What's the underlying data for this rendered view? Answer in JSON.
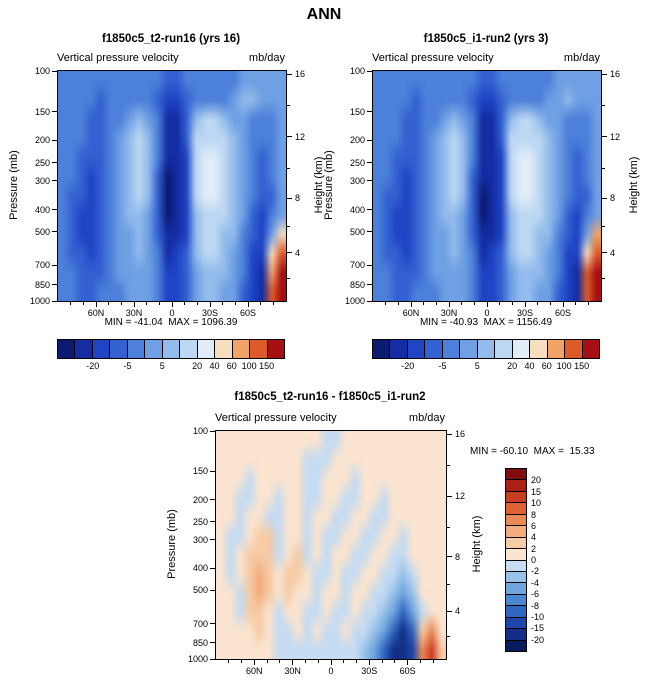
{
  "page_title": "ANN",
  "shared": {
    "subtitle_left": "Vertical pressure velocity",
    "subtitle_right": "mb/day",
    "ylabel_left": "Pressure (mb)",
    "ylabel_right": "Height (km)",
    "pressure_ticks": [
      {
        "label": "100",
        "f": 0.0
      },
      {
        "label": "150",
        "f": 0.1761
      },
      {
        "label": "200",
        "f": 0.301
      },
      {
        "label": "250",
        "f": 0.3979
      },
      {
        "label": "300",
        "f": 0.4771
      },
      {
        "label": "400",
        "f": 0.6021
      },
      {
        "label": "500",
        "f": 0.699
      },
      {
        "label": "700",
        "f": 0.8451
      },
      {
        "label": "850",
        "f": 0.9294
      },
      {
        "label": "1000",
        "f": 1.0
      }
    ],
    "height_ticks": [
      {
        "label": "16",
        "f": 0.013
      },
      {
        "label": "12",
        "f": 0.286
      },
      {
        "label": "8",
        "f": 0.552
      },
      {
        "label": "4",
        "f": 0.79
      }
    ],
    "height_minor_f": [
      0.149,
      0.423,
      0.674,
      0.9
    ],
    "lat_ticks": [
      {
        "label": "60N",
        "f": 0.1667
      },
      {
        "label": "30N",
        "f": 0.3333
      },
      {
        "label": "0",
        "f": 0.5
      },
      {
        "label": "30S",
        "f": 0.6667
      },
      {
        "label": "60S",
        "f": 0.8333
      }
    ],
    "lat_minor_f": [
      0.0556,
      0.1111,
      0.2222,
      0.2778,
      0.3889,
      0.4444,
      0.5556,
      0.6111,
      0.7222,
      0.7778,
      0.8889,
      0.9444
    ]
  },
  "chart_data": [
    {
      "id": "run16",
      "type": "heatmap",
      "title": "f1850c5_t2-run16 (yrs 16)",
      "variable": "Vertical pressure velocity",
      "units": "mb/day",
      "min": -41.04,
      "max": 1096.39,
      "minmax_text": "MIN = -41.04  MAX = 1096.39",
      "x_axis": "latitude 90N to 90S",
      "y_axis": "pressure 100 to 1000 mb (log scale)",
      "levels": [
        -50,
        -20,
        -10,
        -5,
        0,
        5,
        10,
        20,
        40,
        60,
        100,
        150
      ],
      "palette": [
        "#0c1a72",
        "#142da4",
        "#1f44c4",
        "#3361d2",
        "#4c80da",
        "#6fa0e4",
        "#93bcec",
        "#bcd8f3",
        "#e0edf9",
        "#f6debf",
        "#f2a468",
        "#dc5b28",
        "#a60f14"
      ],
      "colorbar_labels": [
        {
          "t": "-20",
          "f": 0.1538
        },
        {
          "t": "-5",
          "f": 0.3077
        },
        {
          "t": "5",
          "f": 0.4615
        },
        {
          "t": "20",
          "f": 0.6154
        },
        {
          "t": "40",
          "f": 0.6923
        },
        {
          "t": "60",
          "f": 0.7692
        },
        {
          "t": "100",
          "f": 0.8462
        },
        {
          "t": "150",
          "f": 0.9231
        }
      ],
      "grid_note": "approximate visual reconstruction; values are palette band indices; rows top(100mb) to bottom(1000mb), cols 90N to 90S",
      "grid": [
        [
          4,
          4,
          4,
          4,
          4,
          4,
          4,
          4,
          4,
          4,
          4,
          3,
          3,
          4,
          4,
          4,
          4,
          4,
          4,
          5,
          5,
          5,
          5,
          5
        ],
        [
          4,
          4,
          4,
          4,
          3,
          4,
          4,
          4,
          4,
          4,
          3,
          2,
          2,
          3,
          4,
          4,
          4,
          4,
          5,
          6,
          6,
          5,
          5,
          5
        ],
        [
          4,
          4,
          4,
          3,
          3,
          4,
          4,
          5,
          6,
          5,
          4,
          1,
          1,
          3,
          6,
          7,
          7,
          6,
          5,
          5,
          4,
          4,
          4,
          5
        ],
        [
          4,
          4,
          4,
          3,
          3,
          4,
          5,
          6,
          7,
          6,
          4,
          1,
          1,
          3,
          7,
          7,
          7,
          7,
          6,
          5,
          4,
          4,
          4,
          5
        ],
        [
          4,
          4,
          3,
          3,
          3,
          4,
          5,
          6,
          7,
          6,
          4,
          1,
          1,
          2,
          7,
          8,
          8,
          7,
          6,
          5,
          4,
          3,
          4,
          5
        ],
        [
          4,
          4,
          3,
          2,
          3,
          4,
          5,
          6,
          7,
          6,
          3,
          0,
          1,
          2,
          7,
          8,
          8,
          7,
          6,
          5,
          4,
          3,
          4,
          5
        ],
        [
          4,
          3,
          3,
          2,
          3,
          4,
          5,
          6,
          7,
          6,
          3,
          0,
          1,
          2,
          7,
          8,
          8,
          7,
          6,
          5,
          4,
          3,
          3,
          5
        ],
        [
          4,
          3,
          2,
          2,
          3,
          4,
          5,
          6,
          6,
          5,
          3,
          0,
          1,
          2,
          6,
          7,
          7,
          7,
          6,
          5,
          3,
          2,
          4,
          5
        ],
        [
          4,
          3,
          2,
          2,
          3,
          4,
          5,
          5,
          6,
          5,
          3,
          1,
          1,
          2,
          6,
          7,
          7,
          6,
          6,
          4,
          3,
          2,
          5,
          9
        ],
        [
          4,
          3,
          3,
          2,
          3,
          4,
          5,
          5,
          6,
          5,
          4,
          1,
          2,
          3,
          6,
          7,
          7,
          6,
          5,
          4,
          2,
          2,
          9,
          11
        ],
        [
          4,
          4,
          3,
          3,
          3,
          4,
          5,
          5,
          5,
          5,
          4,
          2,
          2,
          3,
          5,
          6,
          6,
          6,
          5,
          4,
          2,
          1,
          10,
          12
        ],
        [
          4,
          4,
          3,
          3,
          4,
          4,
          4,
          5,
          5,
          5,
          4,
          2,
          2,
          3,
          5,
          6,
          6,
          5,
          5,
          3,
          2,
          1,
          11,
          12
        ]
      ]
    },
    {
      "id": "run2",
      "type": "heatmap",
      "title": "f1850c5_i1-run2 (yrs 3)",
      "variable": "Vertical pressure velocity",
      "units": "mb/day",
      "min": -40.93,
      "max": 1156.49,
      "minmax_text": "MIN = -40.93  MAX = 1156.49",
      "x_axis": "latitude 90N to 90S",
      "y_axis": "pressure 100 to 1000 mb (log scale)",
      "levels": [
        -50,
        -20,
        -10,
        -5,
        0,
        5,
        10,
        20,
        40,
        60,
        100,
        150
      ],
      "palette": [
        "#0c1a72",
        "#142da4",
        "#1f44c4",
        "#3361d2",
        "#4c80da",
        "#6fa0e4",
        "#93bcec",
        "#bcd8f3",
        "#e0edf9",
        "#f6debf",
        "#f2a468",
        "#dc5b28",
        "#a60f14"
      ],
      "colorbar_labels": [
        {
          "t": "-20",
          "f": 0.1538
        },
        {
          "t": "-5",
          "f": 0.3077
        },
        {
          "t": "5",
          "f": 0.4615
        },
        {
          "t": "20",
          "f": 0.6154
        },
        {
          "t": "40",
          "f": 0.6923
        },
        {
          "t": "60",
          "f": 0.7692
        },
        {
          "t": "100",
          "f": 0.8462
        },
        {
          "t": "150",
          "f": 0.9231
        }
      ],
      "grid_note": "approximate visual reconstruction; values are palette band indices; rows top(100mb) to bottom(1000mb), cols 90N to 90S",
      "grid": [
        [
          4,
          4,
          4,
          4,
          4,
          4,
          4,
          4,
          4,
          4,
          4,
          3,
          3,
          4,
          4,
          4,
          4,
          4,
          4,
          5,
          5,
          5,
          5,
          5
        ],
        [
          4,
          4,
          4,
          4,
          3,
          4,
          4,
          4,
          4,
          4,
          3,
          2,
          2,
          3,
          4,
          4,
          4,
          4,
          5,
          5,
          6,
          5,
          5,
          5
        ],
        [
          4,
          4,
          4,
          3,
          3,
          4,
          4,
          5,
          6,
          5,
          4,
          1,
          1,
          3,
          6,
          7,
          7,
          6,
          5,
          5,
          4,
          4,
          4,
          5
        ],
        [
          4,
          4,
          4,
          3,
          3,
          4,
          5,
          6,
          7,
          6,
          4,
          1,
          1,
          3,
          7,
          7,
          7,
          7,
          6,
          5,
          4,
          4,
          4,
          5
        ],
        [
          4,
          4,
          3,
          3,
          3,
          4,
          5,
          6,
          7,
          6,
          4,
          1,
          1,
          2,
          7,
          8,
          8,
          7,
          6,
          5,
          4,
          3,
          4,
          5
        ],
        [
          4,
          4,
          3,
          2,
          3,
          4,
          5,
          6,
          7,
          6,
          3,
          1,
          1,
          2,
          7,
          8,
          8,
          7,
          6,
          5,
          4,
          3,
          4,
          5
        ],
        [
          4,
          3,
          3,
          2,
          3,
          4,
          5,
          6,
          7,
          6,
          3,
          0,
          1,
          2,
          7,
          8,
          8,
          7,
          6,
          5,
          4,
          3,
          3,
          5
        ],
        [
          4,
          3,
          2,
          2,
          3,
          4,
          5,
          6,
          6,
          5,
          3,
          0,
          1,
          2,
          6,
          7,
          7,
          7,
          6,
          5,
          3,
          2,
          4,
          5
        ],
        [
          4,
          3,
          2,
          2,
          3,
          4,
          5,
          5,
          6,
          5,
          3,
          1,
          1,
          2,
          6,
          7,
          7,
          6,
          6,
          4,
          3,
          2,
          5,
          10
        ],
        [
          4,
          3,
          3,
          2,
          3,
          4,
          5,
          5,
          6,
          5,
          4,
          1,
          2,
          3,
          6,
          7,
          7,
          6,
          5,
          4,
          2,
          2,
          9,
          11
        ],
        [
          4,
          4,
          3,
          3,
          3,
          4,
          5,
          5,
          5,
          5,
          4,
          2,
          2,
          3,
          5,
          6,
          6,
          6,
          5,
          4,
          2,
          1,
          11,
          12
        ],
        [
          4,
          4,
          3,
          3,
          4,
          4,
          4,
          5,
          5,
          5,
          4,
          2,
          2,
          3,
          5,
          6,
          6,
          5,
          5,
          3,
          2,
          1,
          11,
          12
        ]
      ]
    },
    {
      "id": "diff",
      "type": "heatmap",
      "title": "f1850c5_t2-run16 - f1850c5_i1-run2",
      "variable": "Vertical pressure velocity",
      "units": "mb/day",
      "min": -60.1,
      "max": 15.33,
      "minmax_text": "MIN = -60.10  MAX =  15.33",
      "x_axis": "latitude 90N to 90S",
      "y_axis": "pressure 100 to 1000 mb (log scale)",
      "levels": [
        -20,
        -15,
        -10,
        -8,
        -6,
        -4,
        -2,
        0,
        2,
        4,
        6,
        8,
        10,
        15,
        20
      ],
      "palette": [
        "#081c5c",
        "#122e86",
        "#1d47ab",
        "#2f66c2",
        "#4d87d2",
        "#70a5df",
        "#98c2ea",
        "#c5dcf3",
        "#fbe5d0",
        "#f7cba6",
        "#f3ad7d",
        "#ec8a55",
        "#df6234",
        "#cb3d20",
        "#ab2015",
        "#7f0d0e"
      ],
      "colorbar_labels": [
        {
          "t": "20",
          "f": 0.0625
        },
        {
          "t": "15",
          "f": 0.125
        },
        {
          "t": "10",
          "f": 0.1875
        },
        {
          "t": "8",
          "f": 0.25
        },
        {
          "t": "6",
          "f": 0.3125
        },
        {
          "t": "4",
          "f": 0.375
        },
        {
          "t": "2",
          "f": 0.4375
        },
        {
          "t": "0",
          "f": 0.5
        },
        {
          "t": "-2",
          "f": 0.5625
        },
        {
          "t": "-4",
          "f": 0.625
        },
        {
          "t": "-6",
          "f": 0.6875
        },
        {
          "t": "-8",
          "f": 0.75
        },
        {
          "t": "-10",
          "f": 0.8125
        },
        {
          "t": "-15",
          "f": 0.875
        },
        {
          "t": "-20",
          "f": 0.9375
        }
      ],
      "grid_note": "approximate visual reconstruction; values are palette band indices; rows top(100mb) to bottom(1000mb), cols 90N to 90S",
      "grid": [
        [
          8,
          8,
          8,
          8,
          8,
          8,
          8,
          8,
          8,
          8,
          8,
          7,
          7,
          8,
          8,
          8,
          8,
          8,
          8,
          8,
          8,
          8,
          8,
          8
        ],
        [
          8,
          8,
          8,
          8,
          8,
          8,
          8,
          8,
          8,
          7,
          7,
          7,
          8,
          8,
          8,
          8,
          8,
          8,
          8,
          8,
          8,
          8,
          8,
          8
        ],
        [
          8,
          8,
          8,
          7,
          8,
          8,
          8,
          8,
          8,
          7,
          7,
          8,
          8,
          8,
          7,
          8,
          8,
          8,
          8,
          8,
          8,
          8,
          8,
          8
        ],
        [
          8,
          8,
          7,
          7,
          8,
          8,
          7,
          8,
          8,
          7,
          7,
          8,
          8,
          7,
          7,
          8,
          8,
          7,
          8,
          8,
          8,
          8,
          8,
          8
        ],
        [
          8,
          8,
          7,
          8,
          8,
          7,
          7,
          8,
          8,
          7,
          8,
          8,
          7,
          7,
          8,
          8,
          7,
          7,
          8,
          8,
          8,
          8,
          8,
          8
        ],
        [
          8,
          7,
          7,
          8,
          9,
          9,
          7,
          8,
          8,
          7,
          8,
          7,
          7,
          8,
          8,
          7,
          7,
          8,
          8,
          7,
          8,
          8,
          8,
          8
        ],
        [
          8,
          7,
          8,
          9,
          9,
          9,
          7,
          8,
          9,
          7,
          8,
          7,
          8,
          8,
          7,
          7,
          8,
          8,
          7,
          7,
          8,
          8,
          8,
          8
        ],
        [
          8,
          7,
          8,
          9,
          10,
          9,
          8,
          9,
          9,
          8,
          7,
          7,
          8,
          7,
          7,
          8,
          8,
          7,
          7,
          6,
          7,
          8,
          8,
          8
        ],
        [
          8,
          8,
          7,
          9,
          10,
          9,
          8,
          9,
          8,
          8,
          7,
          8,
          8,
          7,
          8,
          8,
          7,
          7,
          6,
          5,
          6,
          8,
          8,
          8
        ],
        [
          8,
          8,
          7,
          9,
          9,
          8,
          7,
          8,
          8,
          7,
          7,
          8,
          7,
          7,
          8,
          7,
          7,
          6,
          5,
          3,
          5,
          7,
          8,
          8
        ],
        [
          8,
          8,
          8,
          8,
          9,
          8,
          7,
          7,
          8,
          7,
          8,
          7,
          7,
          8,
          7,
          7,
          6,
          5,
          3,
          1,
          3,
          9,
          11,
          8
        ],
        [
          8,
          8,
          8,
          8,
          8,
          8,
          7,
          7,
          7,
          7,
          7,
          7,
          7,
          7,
          7,
          6,
          5,
          3,
          1,
          1,
          2,
          11,
          13,
          9
        ]
      ]
    }
  ]
}
